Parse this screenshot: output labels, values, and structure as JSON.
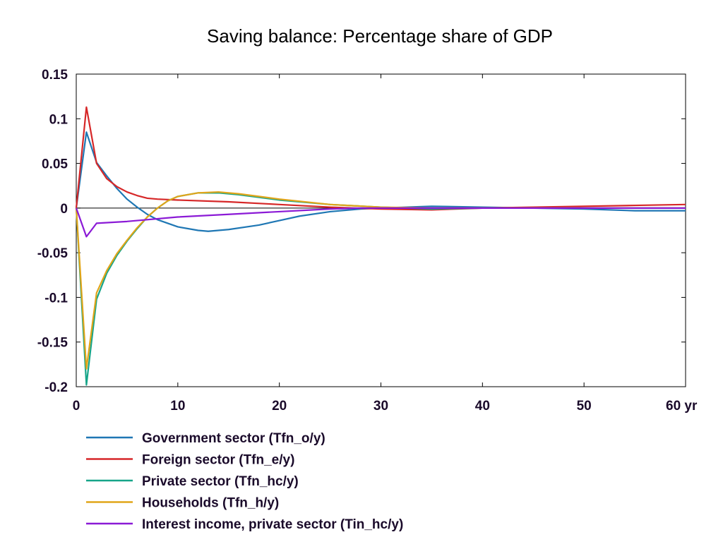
{
  "chart_data": {
    "type": "line",
    "title": "Saving balance: Percentage share of GDP",
    "xlabel": "",
    "ylabel": "",
    "xlim": [
      0,
      60
    ],
    "ylim": [
      -0.2,
      0.15
    ],
    "x_ticks": [
      0,
      10,
      20,
      30,
      40,
      50,
      60
    ],
    "x_tick_labels": [
      "0",
      "10",
      "20",
      "30",
      "40",
      "50",
      "60 yr"
    ],
    "y_ticks": [
      0.15,
      0.1,
      0.05,
      0,
      -0.05,
      -0.1,
      -0.15,
      -0.2
    ],
    "y_tick_labels": [
      "0.15",
      "0.1",
      "0.05",
      "0",
      "-0.05",
      "-0.1",
      "-0.15",
      "-0.2"
    ],
    "grid": false,
    "zero_line": true,
    "legend_position": "bottom-left",
    "series": [
      {
        "name": "Government sector (Tfn_o/y)",
        "color": "#1f77b4",
        "x": [
          0,
          1,
          2,
          3,
          4,
          5,
          6,
          7,
          8,
          10,
          12,
          13,
          15,
          18,
          20,
          22,
          25,
          28,
          30,
          35,
          40,
          45,
          50,
          55,
          60
        ],
        "y": [
          0,
          0.085,
          0.051,
          0.036,
          0.022,
          0.01,
          0.001,
          -0.007,
          -0.013,
          -0.021,
          -0.025,
          -0.026,
          -0.024,
          -0.019,
          -0.014,
          -0.009,
          -0.004,
          -0.001,
          0.0,
          0.002,
          0.001,
          0.0,
          -0.001,
          -0.003,
          -0.003
        ]
      },
      {
        "name": "Foreign sector (Tfn_e/y)",
        "color": "#d62728",
        "x": [
          0,
          1,
          2,
          3,
          4,
          5,
          6,
          7,
          8,
          10,
          15,
          20,
          25,
          30,
          35,
          40,
          45,
          50,
          55,
          60
        ],
        "y": [
          0,
          0.113,
          0.05,
          0.033,
          0.024,
          0.018,
          0.014,
          0.011,
          0.01,
          0.009,
          0.007,
          0.004,
          0.001,
          -0.001,
          -0.002,
          0.0,
          0.001,
          0.002,
          0.003,
          0.004
        ]
      },
      {
        "name": "Private sector (Tfn_hc/y)",
        "color": "#17a589",
        "x": [
          0,
          1,
          2,
          3,
          4,
          5,
          6,
          7,
          8,
          9,
          10,
          12,
          14,
          16,
          18,
          20,
          25,
          30,
          35,
          40,
          45,
          50,
          55,
          60
        ],
        "y": [
          0,
          -0.198,
          -0.102,
          -0.073,
          -0.053,
          -0.037,
          -0.023,
          -0.01,
          0.0,
          0.008,
          0.013,
          0.017,
          0.017,
          0.015,
          0.012,
          0.009,
          0.004,
          0.001,
          -0.001,
          0.0,
          0.0,
          0.0,
          0.0,
          0.0
        ]
      },
      {
        "name": "Households (Tfn_h/y)",
        "color": "#e0a51a",
        "x": [
          0,
          1,
          2,
          3,
          4,
          5,
          6,
          7,
          8,
          9,
          10,
          12,
          14,
          16,
          18,
          20,
          25,
          30,
          35,
          40,
          45,
          50,
          55,
          60
        ],
        "y": [
          0,
          -0.18,
          -0.095,
          -0.07,
          -0.051,
          -0.036,
          -0.022,
          -0.01,
          0.0,
          0.008,
          0.013,
          0.017,
          0.018,
          0.016,
          0.013,
          0.01,
          0.004,
          0.001,
          0.0,
          0.0,
          0.0,
          0.0,
          0.0,
          0.0
        ]
      },
      {
        "name": "Interest income, private sector (Tin_hc/y)",
        "color": "#8b1ad6",
        "x": [
          0,
          1,
          2,
          5,
          10,
          15,
          20,
          25,
          28,
          30,
          40,
          50,
          60
        ],
        "y": [
          0,
          -0.032,
          -0.017,
          -0.015,
          -0.01,
          -0.007,
          -0.004,
          -0.001,
          0.0,
          0.0,
          0.0,
          0.0,
          0.0
        ]
      }
    ]
  }
}
